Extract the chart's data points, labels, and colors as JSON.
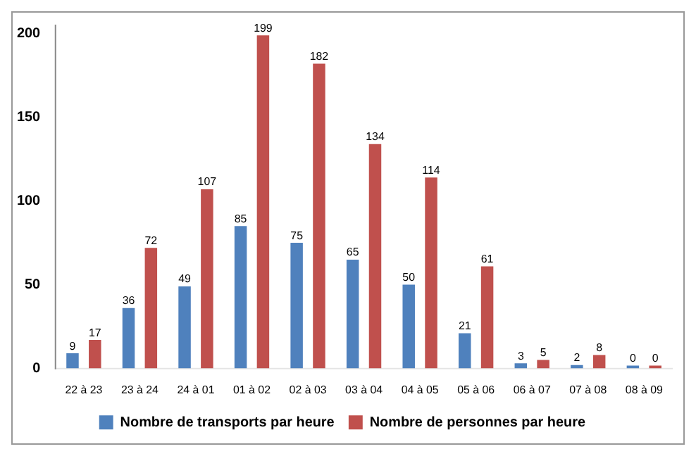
{
  "chart_data": {
    "type": "bar",
    "categories": [
      "22 à 23",
      "23 à 24",
      "24 à 01",
      "01 à 02",
      "02 à 03",
      "03 à 04",
      "04 à 05",
      "05 à 06",
      "06 à 07",
      "07 à 08",
      "08 à 09"
    ],
    "series": [
      {
        "name": "Nombre de transports par heure",
        "color": "#4f81bd",
        "values": [
          9,
          36,
          49,
          85,
          75,
          65,
          50,
          21,
          3,
          2,
          0
        ]
      },
      {
        "name": "Nombre de personnes par heure",
        "color": "#c0504d",
        "values": [
          17,
          72,
          107,
          199,
          182,
          134,
          114,
          61,
          5,
          8,
          0
        ]
      }
    ],
    "ylim": [
      0,
      205
    ],
    "yticks": [
      0,
      50,
      100,
      150,
      200
    ],
    "grid": false,
    "legend": "bottom",
    "data_labels": true
  }
}
